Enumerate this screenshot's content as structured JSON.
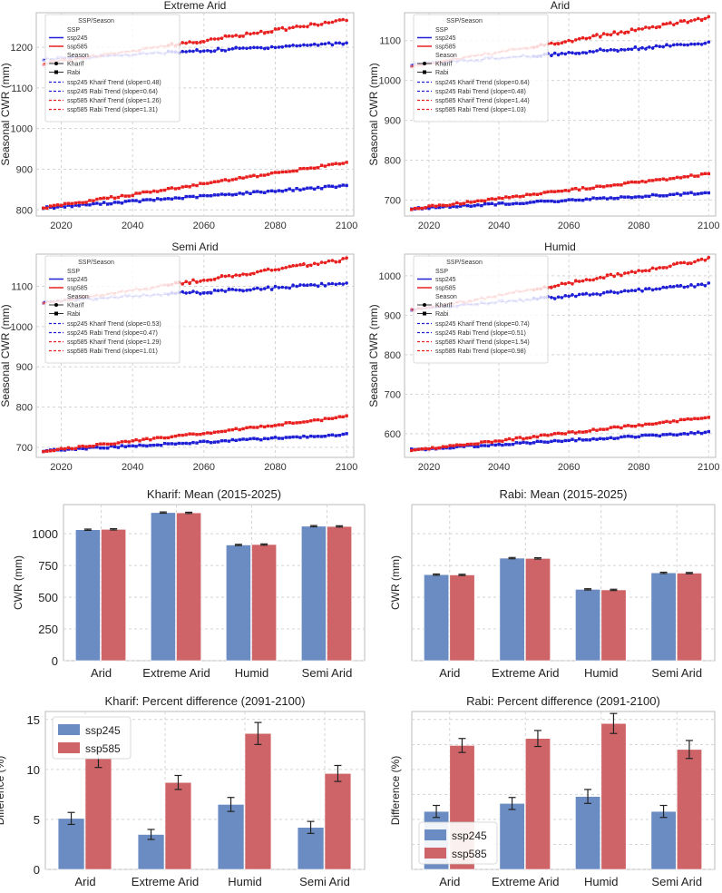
{
  "colors": {
    "ssp245": "#1f1fd6",
    "ssp585": "#e8201f",
    "bar245": "#6b8cc3",
    "bar585": "#cf6468",
    "grid": "#d4d4d4",
    "frame": "#bbbbbb"
  },
  "legend_small": {
    "header": "SSP/Season",
    "ssp_title": "SSP",
    "season_title": "Season",
    "ssp245": "ssp245",
    "ssp585": "ssp585",
    "kharif": "Kharif",
    "rabi": "Rabi"
  },
  "chart_data": [
    {
      "id": "extreme-arid",
      "type": "line",
      "title": "Extreme Arid",
      "ylabel": "Seasonal CWR (mm)",
      "xlim": [
        2013,
        2102
      ],
      "ylim": [
        785,
        1285
      ],
      "xticks": [
        "2020",
        "2040",
        "2060",
        "2080",
        "2100"
      ],
      "yticks": [
        "800",
        "900",
        "1000",
        "1100",
        "1200"
      ],
      "series": [
        {
          "ssp": "ssp245",
          "season": "Kharif",
          "start": 1170,
          "slope": 0.48,
          "upto2050": true
        },
        {
          "ssp": "ssp245",
          "season": "Rabi",
          "start": 805,
          "slope": 0.64
        },
        {
          "ssp": "ssp585",
          "season": "Kharif",
          "start": 1160,
          "slope": 1.26
        },
        {
          "ssp": "ssp585",
          "season": "Rabi",
          "start": 805,
          "slope": 1.31
        }
      ],
      "trend_labels": [
        "ssp245 Kharif Trend (slope=0.48)",
        "ssp245 Rabi Trend (slope=0.64)",
        "ssp585 Kharif Trend (slope=1.26)",
        "ssp585 Rabi Trend (slope=1.31)"
      ]
    },
    {
      "id": "arid",
      "type": "line",
      "title": "Arid",
      "ylabel": "Seasonal CWR (mm)",
      "xlim": [
        2013,
        2102
      ],
      "ylim": [
        660,
        1170
      ],
      "xticks": [
        "2020",
        "2040",
        "2060",
        "2080",
        "2100"
      ],
      "yticks": [
        "700",
        "800",
        "900",
        "1000",
        "1100"
      ],
      "series": [
        {
          "ssp": "ssp245",
          "season": "Kharif",
          "start": 1040,
          "slope": 0.64
        },
        {
          "ssp": "ssp245",
          "season": "Rabi",
          "start": 678,
          "slope": 0.48
        },
        {
          "ssp": "ssp585",
          "season": "Kharif",
          "start": 1035,
          "slope": 1.44
        },
        {
          "ssp": "ssp585",
          "season": "Rabi",
          "start": 678,
          "slope": 1.03
        }
      ],
      "trend_labels": [
        "ssp245 Kharif Trend (slope=0.64)",
        "ssp245 Rabi Trend (slope=0.48)",
        "ssp585 Kharif Trend (slope=1.44)",
        "ssp585 Rabi Trend (slope=1.03)"
      ]
    },
    {
      "id": "semi-arid",
      "type": "line",
      "title": "Semi Arid",
      "ylabel": "Seasonal CWR (mm)",
      "xlim": [
        2013,
        2102
      ],
      "ylim": [
        675,
        1180
      ],
      "xticks": [
        "2020",
        "2040",
        "2060",
        "2080",
        "2100"
      ],
      "yticks": [
        "700",
        "800",
        "900",
        "1000",
        "1100"
      ],
      "series": [
        {
          "ssp": "ssp245",
          "season": "Kharif",
          "start": 1062,
          "slope": 0.53
        },
        {
          "ssp": "ssp245",
          "season": "Rabi",
          "start": 692,
          "slope": 0.47
        },
        {
          "ssp": "ssp585",
          "season": "Kharif",
          "start": 1058,
          "slope": 1.29
        },
        {
          "ssp": "ssp585",
          "season": "Rabi",
          "start": 690,
          "slope": 1.01
        }
      ],
      "trend_labels": [
        "ssp245 Kharif Trend (slope=0.53)",
        "ssp245 Rabi Trend (slope=0.47)",
        "ssp585 Kharif Trend (slope=1.29)",
        "ssp585 Rabi Trend (slope=1.01)"
      ]
    },
    {
      "id": "humid",
      "type": "line",
      "title": "Humid",
      "ylabel": "Seasonal CWR (mm)",
      "xlim": [
        2013,
        2102
      ],
      "ylim": [
        540,
        1055
      ],
      "xticks": [
        "2020",
        "2040",
        "2060",
        "2080",
        "2100"
      ],
      "yticks": [
        "600",
        "700",
        "800",
        "900",
        "1000"
      ],
      "series": [
        {
          "ssp": "ssp245",
          "season": "Kharif",
          "start": 915,
          "slope": 0.74
        },
        {
          "ssp": "ssp245",
          "season": "Rabi",
          "start": 560,
          "slope": 0.51
        },
        {
          "ssp": "ssp585",
          "season": "Kharif",
          "start": 912,
          "slope": 1.54
        },
        {
          "ssp": "ssp585",
          "season": "Rabi",
          "start": 558,
          "slope": 0.98
        }
      ],
      "trend_labels": [
        "ssp245 Kharif Trend (slope=0.74)",
        "ssp245 Rabi Trend (slope=0.51)",
        "ssp585 Kharif Trend (slope=1.54)",
        "ssp585 Rabi Trend (slope=0.98)"
      ]
    },
    {
      "id": "kharif-mean",
      "type": "bar",
      "title": "Kharif: Mean (2015-2025)",
      "ylabel": "CWR (mm)",
      "ylim": [
        0,
        1230
      ],
      "categories": [
        "Arid",
        "Extreme Arid",
        "Humid",
        "Semi Arid"
      ],
      "yticks": [
        0,
        250,
        500,
        750,
        1000
      ],
      "series": [
        {
          "name": "ssp245",
          "values": [
            1032,
            1167,
            912,
            1060
          ],
          "errors": [
            5,
            5,
            5,
            5
          ]
        },
        {
          "name": "ssp585",
          "values": [
            1035,
            1165,
            915,
            1058
          ],
          "errors": [
            5,
            5,
            5,
            5
          ]
        }
      ]
    },
    {
      "id": "rabi-mean",
      "type": "bar",
      "title": "Rabi: Mean (2015-2025)",
      "ylabel": "CWR (mm)",
      "ylim": [
        0,
        1230
      ],
      "categories": [
        "Arid",
        "Extreme Arid",
        "Humid",
        "Semi Arid"
      ],
      "yticks": [],
      "series": [
        {
          "name": "ssp245",
          "values": [
            678,
            808,
            562,
            692
          ],
          "errors": [
            5,
            5,
            5,
            5
          ]
        },
        {
          "name": "ssp585",
          "values": [
            676,
            806,
            558,
            690
          ],
          "errors": [
            5,
            5,
            5,
            5
          ]
        }
      ]
    },
    {
      "id": "kharif-diff",
      "type": "bar",
      "title": "Kharif: Percent difference (2091-2100)",
      "ylabel": "Difference (%)",
      "ylim": [
        0,
        15.8
      ],
      "legend": "upper-left",
      "categories": [
        "Arid",
        "Extreme Arid",
        "Humid",
        "Semi Arid"
      ],
      "yticks": [
        0,
        5,
        10,
        15
      ],
      "series": [
        {
          "name": "ssp245",
          "values": [
            5.1,
            3.5,
            6.5,
            4.2
          ],
          "errors": [
            0.6,
            0.5,
            0.7,
            0.6
          ]
        },
        {
          "name": "ssp585",
          "values": [
            11.1,
            8.7,
            13.6,
            9.6
          ],
          "errors": [
            0.9,
            0.7,
            1.1,
            0.8
          ]
        }
      ]
    },
    {
      "id": "rabi-diff",
      "type": "bar",
      "title": "Rabi: Percent difference (2091-2100)",
      "ylabel": "Difference (%)",
      "ylim": [
        0,
        15.8
      ],
      "legend": "lower-left",
      "categories": [
        "Arid",
        "Extreme Arid",
        "Humid",
        "Semi Arid"
      ],
      "yticks": [],
      "series": [
        {
          "name": "ssp245",
          "values": [
            5.8,
            6.6,
            7.3,
            5.8
          ],
          "errors": [
            0.6,
            0.6,
            0.7,
            0.6
          ]
        },
        {
          "name": "ssp585",
          "values": [
            12.4,
            13.1,
            14.6,
            12.0
          ],
          "errors": [
            0.7,
            0.8,
            1.0,
            0.9
          ]
        }
      ]
    }
  ]
}
